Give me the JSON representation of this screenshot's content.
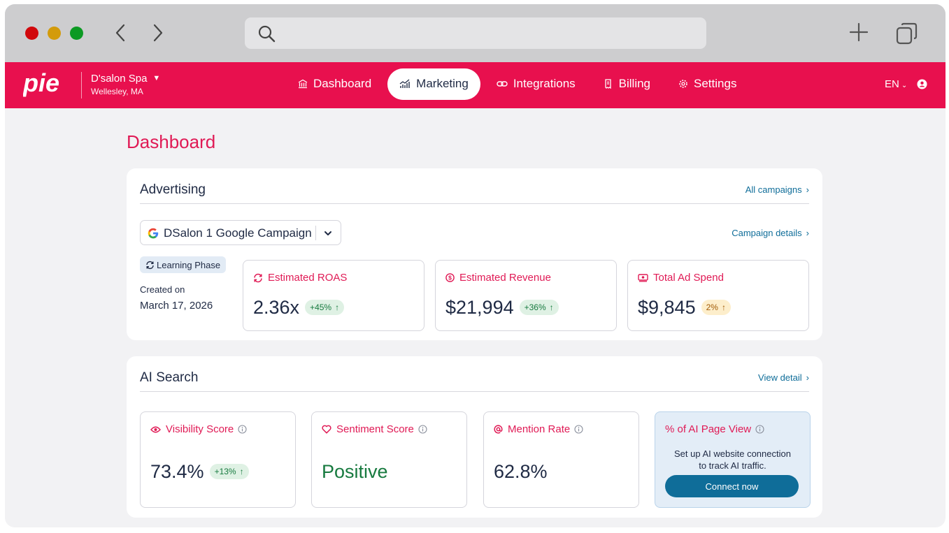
{
  "browser": {
    "url_value": ""
  },
  "header": {
    "logo_text": "pie",
    "business": {
      "name": "D'salon Spa",
      "location": "Wellesley, MA"
    },
    "nav": [
      {
        "label": "Dashboard",
        "icon": "bank-icon",
        "active": false
      },
      {
        "label": "Marketing",
        "icon": "chart-icon",
        "active": true
      },
      {
        "label": "Integrations",
        "icon": "link-icon",
        "active": false
      },
      {
        "label": "Billing",
        "icon": "receipt-icon",
        "active": false
      },
      {
        "label": "Settings",
        "icon": "gear-icon",
        "active": false
      }
    ],
    "language": "EN"
  },
  "page": {
    "title": "Dashboard"
  },
  "advertising": {
    "title": "Advertising",
    "all_campaigns_link": "All campaigns",
    "campaign_select_value": "DSalon 1 Google Campaign",
    "campaign_details_link": "Campaign details",
    "phase_badge": "Learning Phase",
    "created_label": "Created on",
    "created_date": "March 17, 2026",
    "metrics": [
      {
        "label": "Estimated ROAS",
        "value": "2.36x",
        "change": "+45%",
        "tone": "green"
      },
      {
        "label": "Estimated Revenue",
        "value": "$21,994",
        "change": "+36%",
        "tone": "green"
      },
      {
        "label": "Total Ad Spend",
        "value": "$9,845",
        "change": "2%",
        "tone": "orange"
      }
    ]
  },
  "ai_search": {
    "title": "AI Search",
    "view_detail_link": "View detail",
    "metrics": [
      {
        "label": "Visibility Score",
        "value": "73.4%",
        "change": "+13%"
      },
      {
        "label": "Sentiment Score",
        "value": "Positive"
      },
      {
        "label": "Mention Rate",
        "value": "62.8%"
      }
    ],
    "ai_page_view": {
      "label": "% of AI Page View",
      "message_line1": "Set up AI website connection",
      "message_line2": "to track AI traffic.",
      "button_label": "Connect now"
    }
  },
  "colors": {
    "brand": "#e8104e",
    "accent_text": "#e01a55",
    "link": "#0f6d99",
    "positive": "#177a3f",
    "warning": "#a25b07"
  }
}
